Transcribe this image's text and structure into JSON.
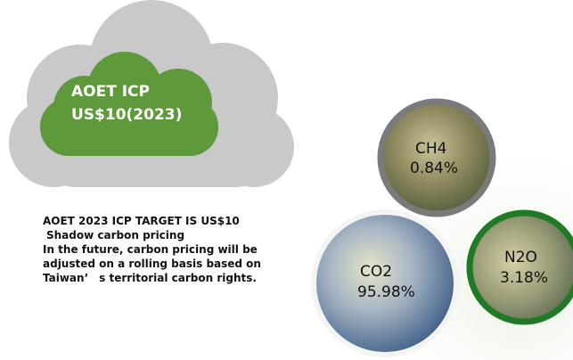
{
  "cloud": {
    "lines": [
      "AOET ICP",
      "US$10(2023)"
    ]
  },
  "description": [
    "AOET 2023 ICP TARGET IS US$10",
    "Shadow carbon pricing",
    "In the future, carbon pricing will be",
    "adjusted on a rolling basis based on",
    "Taiwan’　s territorial carbon rights."
  ],
  "gases": [
    {
      "name": "CH4",
      "share": "0.84%"
    },
    {
      "name": "CO2",
      "share": "95.98%"
    },
    {
      "name": "N2O",
      "share": "3.18%"
    }
  ]
}
